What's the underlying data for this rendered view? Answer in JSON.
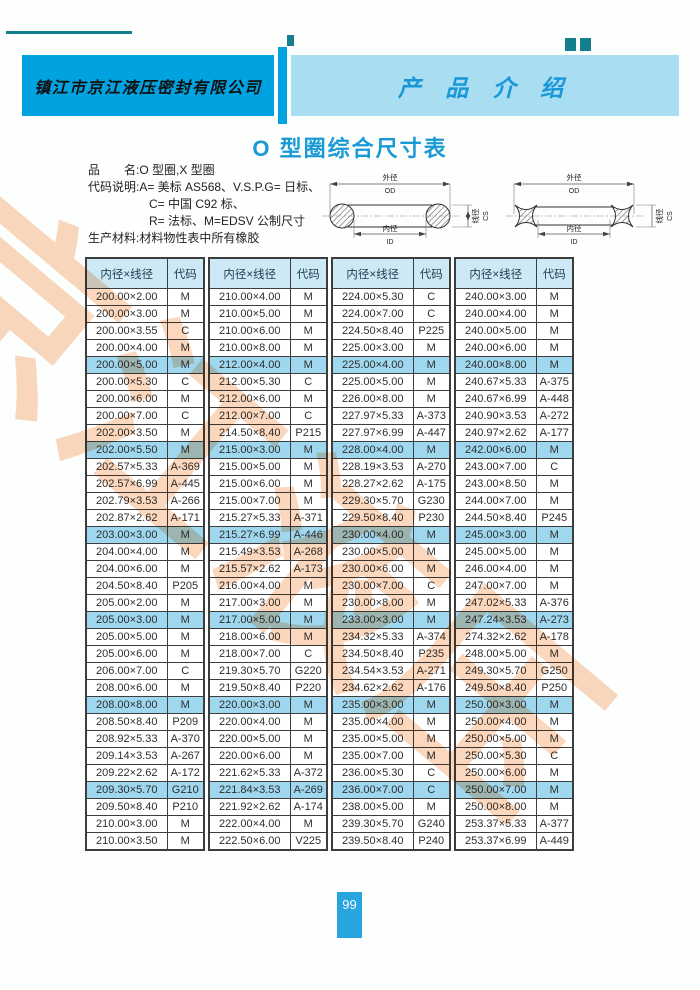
{
  "page": {
    "company_name": "镇江市京江液压密封有限公司",
    "section_title": "产 品 介 绍",
    "title": "O 型圈综合尺寸表",
    "watermark_text": "京江液压",
    "page_number": "99"
  },
  "info": {
    "lines": [
      "品　　名:O 型圈,X 型圈",
      "代码说明:A= 美标 AS568、V.S.P.G= 日标、",
      "C= 中国 C92 标、",
      "R= 法标、M=EDSV 公制尺寸",
      "生产材料:材料物性表中所有橡胶"
    ]
  },
  "diagram": {
    "od_cn": "外径",
    "od_en": "OD",
    "id_cn": "内径",
    "id_en": "ID",
    "cs_cn": "线径",
    "cs_en": "CS"
  },
  "colors": {
    "banner_blue": "#00a3e0",
    "banner_light_blue": "#a9ddf2",
    "title_blue": "#1a9ad5",
    "header_cell_blue": "#cde9f6",
    "highlight_row_blue": "#9fd7ef",
    "watermark_orange": "#ee8330",
    "page_num_blue": "#27a5de",
    "decor_teal": "#157f8d"
  },
  "tables": [
    {
      "headers": [
        "内径×线径",
        "代码"
      ],
      "rows": [
        [
          "200.00×2.00",
          "M"
        ],
        [
          "200.00×3.00",
          "M"
        ],
        [
          "200.00×3.55",
          "C"
        ],
        [
          "200.00×4.00",
          "M"
        ],
        [
          "200.00×5.00",
          "M"
        ],
        [
          "200.00×5.30",
          "C"
        ],
        [
          "200.00×6.00",
          "M"
        ],
        [
          "200.00×7.00",
          "C"
        ],
        [
          "202.00×3.50",
          "M"
        ],
        [
          "202.00×5.50",
          "M"
        ],
        [
          "202.57×5.33",
          "A-369"
        ],
        [
          "202.57×6.99",
          "A-445"
        ],
        [
          "202.79×3.53",
          "A-266"
        ],
        [
          "202.87×2.62",
          "A-171"
        ],
        [
          "203.00×3.00",
          "M"
        ],
        [
          "204.00×4.00",
          "M"
        ],
        [
          "204.00×6.00",
          "M"
        ],
        [
          "204.50×8.40",
          "P205"
        ],
        [
          "205.00×2.00",
          "M"
        ],
        [
          "205.00×3.00",
          "M"
        ],
        [
          "205.00×5.00",
          "M"
        ],
        [
          "205.00×6.00",
          "M"
        ],
        [
          "206.00×7.00",
          "C"
        ],
        [
          "208.00×6.00",
          "M"
        ],
        [
          "208.00×8.00",
          "M"
        ],
        [
          "208.50×8.40",
          "P209"
        ],
        [
          "208.92×5.33",
          "A-370"
        ],
        [
          "209.14×3.53",
          "A-267"
        ],
        [
          "209.22×2.62",
          "A-172"
        ],
        [
          "209.30×5.70",
          "G210"
        ],
        [
          "209.50×8.40",
          "P210"
        ],
        [
          "210.00×3.00",
          "M"
        ],
        [
          "210.00×3.50",
          "M"
        ]
      ]
    },
    {
      "headers": [
        "内径×线径",
        "代码"
      ],
      "rows": [
        [
          "210.00×4.00",
          "M"
        ],
        [
          "210.00×5.00",
          "M"
        ],
        [
          "210.00×6.00",
          "M"
        ],
        [
          "210.00×8.00",
          "M"
        ],
        [
          "212.00×4.00",
          "M"
        ],
        [
          "212.00×5.30",
          "C"
        ],
        [
          "212.00×6.00",
          "M"
        ],
        [
          "212.00×7.00",
          "C"
        ],
        [
          "214.50×8.40",
          "P215"
        ],
        [
          "215.00×3.00",
          "M"
        ],
        [
          "215.00×5.00",
          "M"
        ],
        [
          "215.00×6.00",
          "M"
        ],
        [
          "215.00×7.00",
          "M"
        ],
        [
          "215.27×5.33",
          "A-371"
        ],
        [
          "215.27×6.99",
          "A-446"
        ],
        [
          "215.49×3.53",
          "A-268"
        ],
        [
          "215.57×2.62",
          "A-173"
        ],
        [
          "216.00×4.00",
          "M"
        ],
        [
          "217.00×3.00",
          "M"
        ],
        [
          "217.00×5.00",
          "M"
        ],
        [
          "218.00×6.00",
          "M"
        ],
        [
          "218.00×7.00",
          "C"
        ],
        [
          "219.30×5.70",
          "G220"
        ],
        [
          "219.50×8.40",
          "P220"
        ],
        [
          "220.00×3.00",
          "M"
        ],
        [
          "220.00×4.00",
          "M"
        ],
        [
          "220.00×5.00",
          "M"
        ],
        [
          "220.00×6.00",
          "M"
        ],
        [
          "221.62×5.33",
          "A-372"
        ],
        [
          "221.84×3.53",
          "A-269"
        ],
        [
          "221.92×2.62",
          "A-174"
        ],
        [
          "222.00×4.00",
          "M"
        ],
        [
          "222.50×6.00",
          "V225"
        ]
      ]
    },
    {
      "headers": [
        "内径×线径",
        "代码"
      ],
      "rows": [
        [
          "224.00×5.30",
          "C"
        ],
        [
          "224.00×7.00",
          "C"
        ],
        [
          "224.50×8.40",
          "P225"
        ],
        [
          "225.00×3.00",
          "M"
        ],
        [
          "225.00×4.00",
          "M"
        ],
        [
          "225.00×5.00",
          "M"
        ],
        [
          "226.00×8.00",
          "M"
        ],
        [
          "227.97×5.33",
          "A-373"
        ],
        [
          "227.97×6.99",
          "A-447"
        ],
        [
          "228.00×4.00",
          "M"
        ],
        [
          "228.19×3.53",
          "A-270"
        ],
        [
          "228.27×2.62",
          "A-175"
        ],
        [
          "229.30×5.70",
          "G230"
        ],
        [
          "229.50×8.40",
          "P230"
        ],
        [
          "230.00×4.00",
          "M"
        ],
        [
          "230.00×5.00",
          "M"
        ],
        [
          "230.00×6.00",
          "M"
        ],
        [
          "230.00×7.00",
          "C"
        ],
        [
          "230.00×8.00",
          "M"
        ],
        [
          "233.00×3.00",
          "M"
        ],
        [
          "234.32×5.33",
          "A-374"
        ],
        [
          "234.50×8.40",
          "P235"
        ],
        [
          "234.54×3.53",
          "A-271"
        ],
        [
          "234.62×2.62",
          "A-176"
        ],
        [
          "235.00×3.00",
          "M"
        ],
        [
          "235.00×4.00",
          "M"
        ],
        [
          "235.00×5.00",
          "M"
        ],
        [
          "235.00×7.00",
          "M"
        ],
        [
          "236.00×5.30",
          "C"
        ],
        [
          "236.00×7.00",
          "C"
        ],
        [
          "238.00×5.00",
          "M"
        ],
        [
          "239.30×5.70",
          "G240"
        ],
        [
          "239.50×8.40",
          "P240"
        ]
      ]
    },
    {
      "headers": [
        "内径×线径",
        "代码"
      ],
      "rows": [
        [
          "240.00×3.00",
          "M"
        ],
        [
          "240.00×4.00",
          "M"
        ],
        [
          "240.00×5.00",
          "M"
        ],
        [
          "240.00×6.00",
          "M"
        ],
        [
          "240.00×8.00",
          "M"
        ],
        [
          "240.67×5.33",
          "A-375"
        ],
        [
          "240.67×6.99",
          "A-448"
        ],
        [
          "240.90×3.53",
          "A-272"
        ],
        [
          "240.97×2.62",
          "A-177"
        ],
        [
          "242.00×6.00",
          "M"
        ],
        [
          "243.00×7.00",
          "C"
        ],
        [
          "243.00×8.50",
          "M"
        ],
        [
          "244.00×7.00",
          "M"
        ],
        [
          "244.50×8.40",
          "P245"
        ],
        [
          "245.00×3.00",
          "M"
        ],
        [
          "245.00×5.00",
          "M"
        ],
        [
          "246.00×4.00",
          "M"
        ],
        [
          "247.00×7.00",
          "M"
        ],
        [
          "247.02×5.33",
          "A-376"
        ],
        [
          "247.24×3.53",
          "A-273"
        ],
        [
          "274.32×2.62",
          "A-178"
        ],
        [
          "248.00×5.00",
          "M"
        ],
        [
          "249.30×5.70",
          "G250"
        ],
        [
          "249.50×8.40",
          "P250"
        ],
        [
          "250.00×3.00",
          "M"
        ],
        [
          "250.00×4.00",
          "M"
        ],
        [
          "250.00×5.00",
          "M"
        ],
        [
          "250.00×5.30",
          "C"
        ],
        [
          "250.00×6.00",
          "M"
        ],
        [
          "250.00×7.00",
          "M"
        ],
        [
          "250.00×8.00",
          "M"
        ],
        [
          "253.37×5.33",
          "A-377"
        ],
        [
          "253.37×6.99",
          "A-449"
        ]
      ]
    }
  ]
}
